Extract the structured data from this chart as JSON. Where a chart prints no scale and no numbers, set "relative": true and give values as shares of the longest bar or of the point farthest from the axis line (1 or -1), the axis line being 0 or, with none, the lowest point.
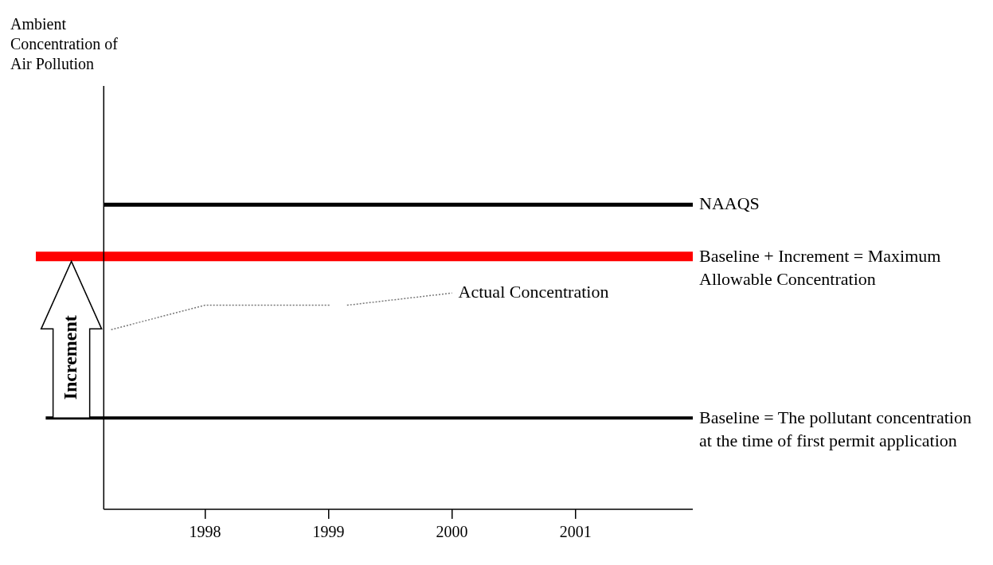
{
  "chart_data": {
    "type": "line",
    "relative": true,
    "xlim": [
      1996.63,
      2001.95
    ],
    "xticks": [
      1998,
      1999,
      2000,
      2001
    ],
    "grid": false,
    "legend": false,
    "marker": "none",
    "series": [
      {
        "name": "NAAQS",
        "color": "#000000",
        "x": [
          1997.18,
          2001.95
        ],
        "values": [
          1,
          1
        ]
      },
      {
        "name": "Baseline + Increment = Maximum Allowable Concentration",
        "color": "#ff0000",
        "x": [
          1996.63,
          2001.95
        ],
        "values": [
          0.83,
          0.83
        ]
      },
      {
        "name": "Baseline = The pollutant concentration at the time of first permit application",
        "color": "#000000",
        "x": [
          1996.71,
          2001.95
        ],
        "values": [
          0.3,
          0.3
        ]
      },
      {
        "name": "Actual Concentration",
        "color": "#777777",
        "line_style": "dotted",
        "x": [
          1997.24,
          1998,
          1999.01,
          1999.08,
          1999.15,
          2000
        ],
        "values": [
          0.59,
          0.67,
          0.67,
          null,
          0.67,
          0.71
        ]
      }
    ],
    "ref_lines": [
      {
        "axis": "x",
        "value": 1997.18,
        "color": "#000000"
      }
    ],
    "annotations": [
      "Ambient Concentration of Air Pollution",
      "Increment"
    ]
  }
}
